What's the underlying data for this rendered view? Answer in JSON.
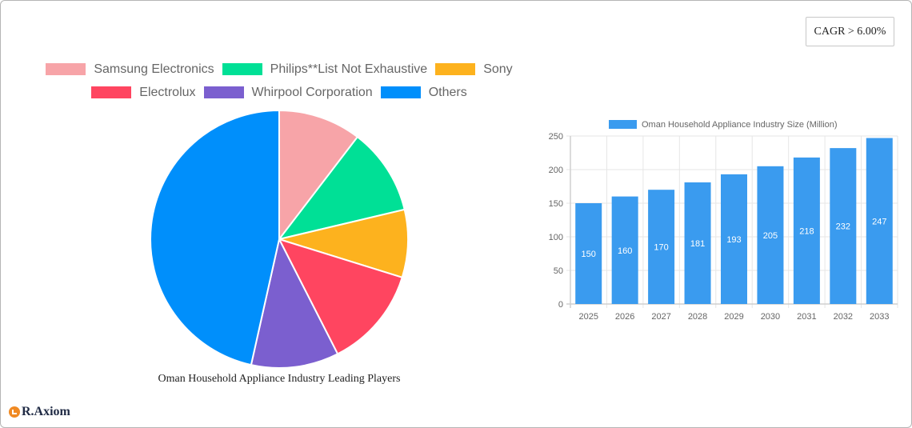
{
  "badge": {
    "cagr_label": "CAGR > 6.00%"
  },
  "brand": {
    "logo_text": "R.Axiom"
  },
  "chart_data": [
    {
      "type": "pie",
      "title": "Oman Household Appliance Industry Leading Players",
      "legend_position": "top",
      "categories": [
        "Samsung Electronics",
        "Philips**List Not Exhaustive",
        "Sony",
        "Electrolux",
        "Whirpool Corporation",
        "Others"
      ],
      "values": [
        10.4,
        10.9,
        8.5,
        12.7,
        11.0,
        46.5
      ],
      "colors": [
        "#f7a4a8",
        "#00e096",
        "#fdb21e",
        "#ff4560",
        "#7b5fcf",
        "#008ffb"
      ],
      "unit": "% share (estimated from slice angles)"
    },
    {
      "type": "bar",
      "title": "",
      "legend": [
        "Oman Household Appliance Industry Size (Million)"
      ],
      "legend_position": "top",
      "categories": [
        "2025",
        "2026",
        "2027",
        "2028",
        "2029",
        "2030",
        "2031",
        "2032",
        "2033"
      ],
      "values": [
        150,
        160,
        170,
        181,
        193,
        205,
        218,
        232,
        247
      ],
      "data_labels": true,
      "color": "#3a9bef",
      "xlabel": "",
      "ylabel": "",
      "ylim": [
        0,
        250
      ],
      "yticks": [
        0,
        50,
        100,
        150,
        200,
        250
      ],
      "grid": true
    }
  ]
}
